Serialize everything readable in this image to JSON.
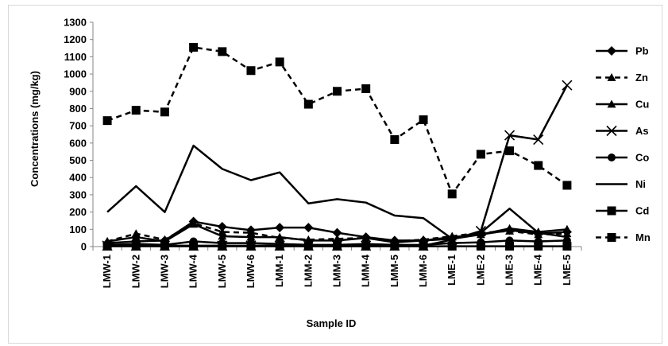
{
  "chart_data": {
    "type": "line",
    "title": "",
    "xlabel": "Sample ID",
    "ylabel": "Concentrations (mg/kg)",
    "ylim": [
      0,
      1300
    ],
    "yticks": [
      0,
      100,
      200,
      300,
      400,
      500,
      600,
      700,
      800,
      900,
      1000,
      1100,
      1200,
      1300
    ],
    "grid": false,
    "legend_position": "right",
    "categories": [
      "LMW-1",
      "LMW-2",
      "LMW-3",
      "LMW-4",
      "LMW-5",
      "LMW-6",
      "LMM-1",
      "LMM-2",
      "LMM-3",
      "LMM-4",
      "LMM-5",
      "LMM-6",
      "LME-1",
      "LME-2",
      "LME-3",
      "LME-4",
      "LME-5"
    ],
    "series": [
      {
        "name": "Pb",
        "marker": "diamond",
        "dash": "solid",
        "values": [
          20,
          30,
          35,
          145,
          115,
          95,
          110,
          110,
          80,
          55,
          35,
          35,
          45,
          70,
          95,
          75,
          85
        ]
      },
      {
        "name": "Zn",
        "marker": "triangle",
        "dash": "dashed",
        "values": [
          30,
          75,
          40,
          135,
          85,
          80,
          50,
          40,
          45,
          50,
          30,
          40,
          60,
          80,
          90,
          70,
          75
        ]
      },
      {
        "name": "Cu",
        "marker": "triangle",
        "dash": "solid",
        "values": [
          30,
          55,
          30,
          130,
          60,
          55,
          55,
          35,
          35,
          50,
          25,
          35,
          55,
          70,
          105,
          85,
          100
        ]
      },
      {
        "name": "As",
        "marker": "x",
        "dash": "solid",
        "values": [
          5,
          5,
          5,
          5,
          5,
          5,
          5,
          5,
          5,
          5,
          5,
          5,
          40,
          90,
          645,
          620,
          935
        ]
      },
      {
        "name": "Co",
        "marker": "circle",
        "dash": "solid",
        "values": [
          10,
          15,
          10,
          30,
          20,
          20,
          15,
          10,
          10,
          15,
          10,
          10,
          20,
          25,
          35,
          30,
          35
        ]
      },
      {
        "name": "Ni",
        "marker": "none",
        "dash": "solid",
        "values": [
          200,
          350,
          200,
          585,
          450,
          385,
          430,
          250,
          275,
          255,
          180,
          165,
          45,
          80,
          220,
          80,
          55
        ]
      },
      {
        "name": "Cd",
        "marker": "square",
        "dash": "solid",
        "values": [
          2,
          2,
          2,
          2,
          2,
          2,
          2,
          2,
          2,
          2,
          2,
          2,
          2,
          2,
          2,
          2,
          2
        ]
      },
      {
        "name": "Mn",
        "marker": "square",
        "dash": "dashed",
        "values": [
          730,
          790,
          780,
          1155,
          1130,
          1020,
          1070,
          825,
          900,
          915,
          620,
          735,
          305,
          535,
          555,
          470,
          355
        ]
      }
    ]
  }
}
